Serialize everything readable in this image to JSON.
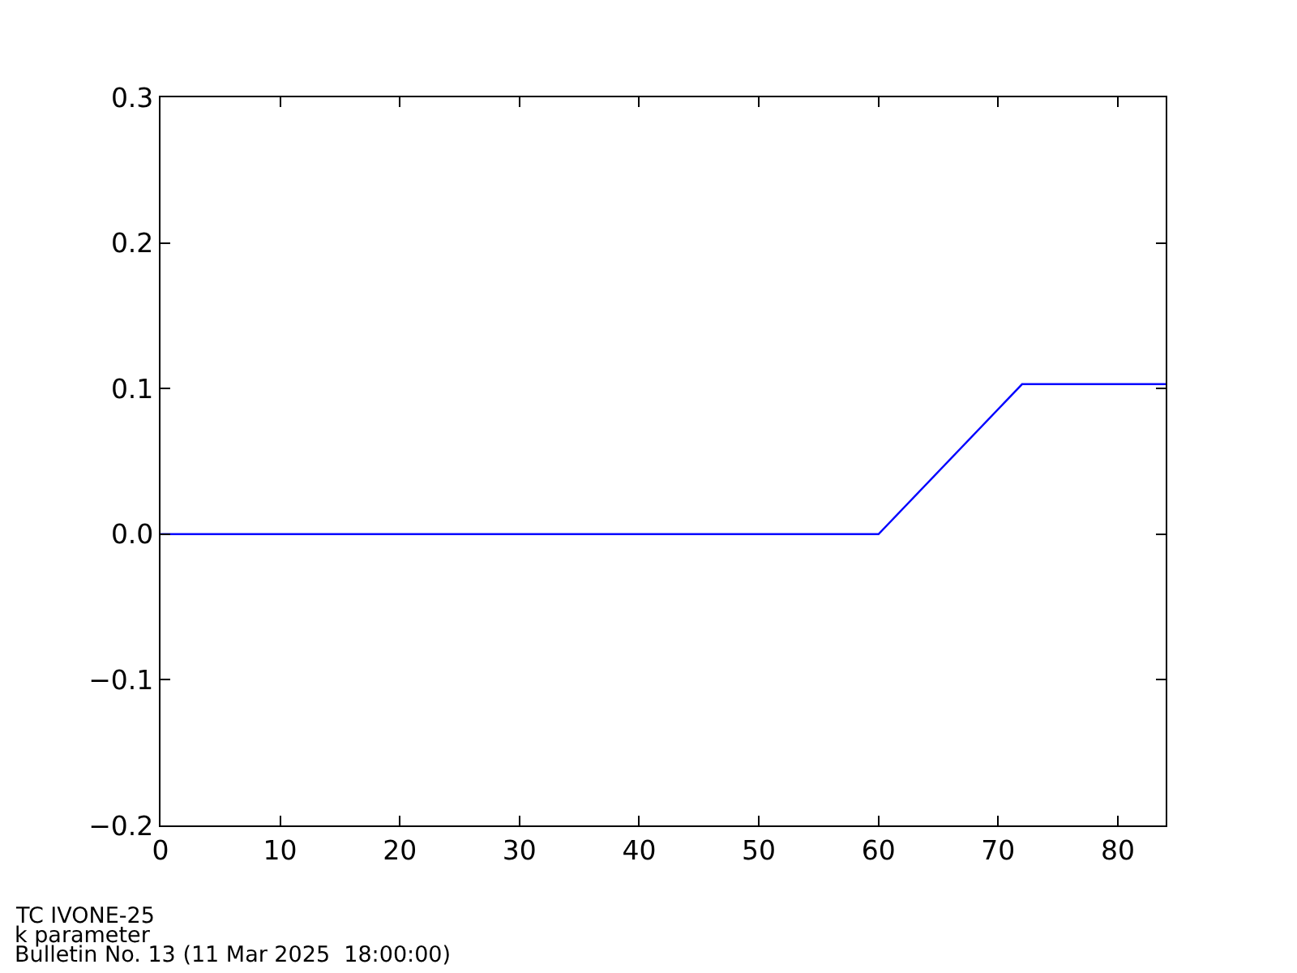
{
  "chart_data": {
    "type": "line",
    "x": [
      0,
      60,
      72,
      84
    ],
    "values": [
      0,
      0,
      0.103,
      0.103
    ],
    "color": "#0000ff",
    "line_style": "solid",
    "xlim": [
      0,
      84
    ],
    "ylim": [
      -0.2,
      0.3
    ],
    "xticks": [
      0,
      10,
      20,
      30,
      40,
      50,
      60,
      70,
      80
    ],
    "yticks": [
      {
        "value": -0.2,
        "label": "−0.2"
      },
      {
        "value": -0.1,
        "label": "−0.1"
      },
      {
        "value": 0,
        "label": "0.0"
      },
      0.1,
      0.2,
      0.3
    ],
    "annotations": [
      "TC IVONE-25",
      "k parameter",
      "Bulletin No. 13 (11 Mar 2025  18:00:00)"
    ]
  }
}
